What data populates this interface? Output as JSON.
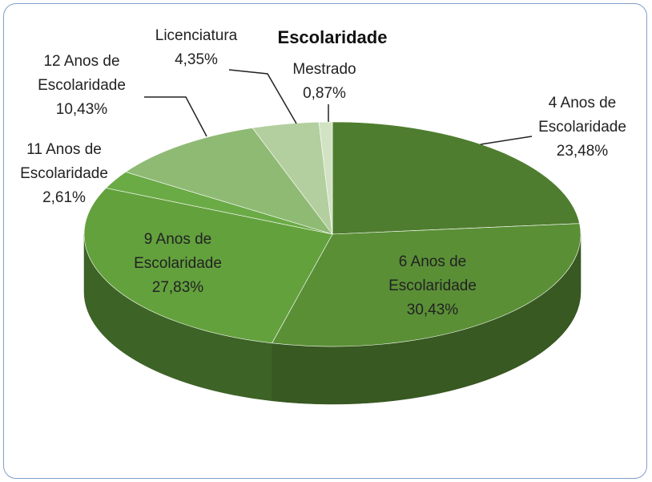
{
  "chart_data": {
    "type": "pie",
    "title": "Escolaridade",
    "categories": [
      "4 Anos de Escolaridade",
      "6 Anos de Escolaridade",
      "9 Anos de Escolaridade",
      "11 Anos de Escolaridade",
      "12 Anos de Escolaridade",
      "Licenciatura",
      "Mestrado"
    ],
    "values": [
      23.48,
      30.43,
      27.83,
      2.61,
      10.43,
      4.35,
      0.87
    ],
    "value_labels": [
      "23,48%",
      "30,43%",
      "27,83%",
      "2,61%",
      "10,43%",
      "4,35%",
      "0,87%"
    ],
    "colors": [
      "#4f7d2f",
      "#5a8f36",
      "#63a13d",
      "#6aab46",
      "#8fba74",
      "#b3cf9f",
      "#d2e3c4"
    ]
  }
}
